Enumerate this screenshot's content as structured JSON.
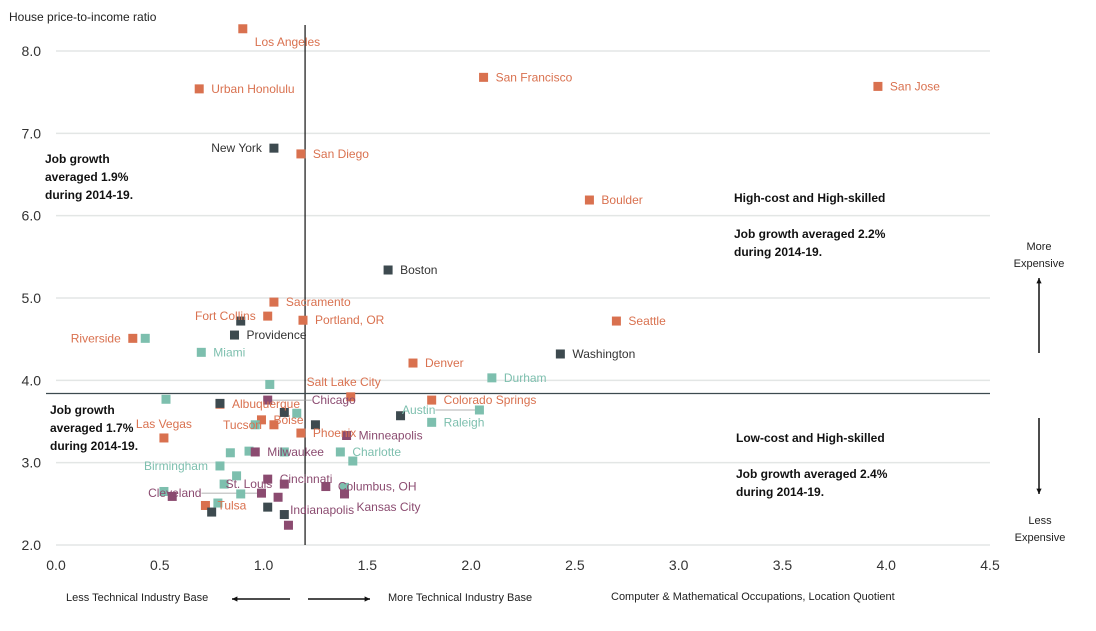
{
  "chart_data": {
    "type": "scatter",
    "ylabel": "House price-to-income ratio",
    "xlabel": "Computer & Mathematical Occupations, Location Quotient",
    "xlim": [
      0,
      4.5
    ],
    "ylim": [
      2.0,
      8.0
    ],
    "xticks": [
      "0.0",
      "0.5",
      "1.0",
      "1.5",
      "2.0",
      "2.5",
      "3.0",
      "3.5",
      "4.0",
      "4.5"
    ],
    "yticks": [
      "2.0",
      "3.0",
      "4.0",
      "5.0",
      "6.0",
      "7.0",
      "8.0"
    ],
    "grid": "horizontal",
    "reference_lines": {
      "x": 1.2,
      "y": 3.84
    },
    "colors": {
      "orange": "#d9714f",
      "dark": "#3d4a4f",
      "teal": "#7dbfae",
      "purple": "#8b4b70"
    },
    "points": [
      {
        "label": "Los Angeles",
        "x": 0.9,
        "y": 8.27,
        "color": "orange"
      },
      {
        "label": "Urban Honolulu",
        "x": 0.69,
        "y": 7.54,
        "color": "orange"
      },
      {
        "label": "San Francisco",
        "x": 2.06,
        "y": 7.68,
        "color": "orange"
      },
      {
        "label": "San Jose",
        "x": 3.96,
        "y": 7.57,
        "color": "orange"
      },
      {
        "label": "San Diego",
        "x": 1.18,
        "y": 6.75,
        "color": "orange"
      },
      {
        "label": "Boulder",
        "x": 2.57,
        "y": 6.19,
        "color": "orange"
      },
      {
        "label": "Sacramento",
        "x": 1.05,
        "y": 4.95,
        "color": "orange"
      },
      {
        "label": "Fort Collins",
        "x": 1.02,
        "y": 4.78,
        "color": "orange"
      },
      {
        "label": "Portland, OR",
        "x": 1.19,
        "y": 4.73,
        "color": "orange"
      },
      {
        "label": "Seattle",
        "x": 2.7,
        "y": 4.72,
        "color": "orange"
      },
      {
        "label": "Riverside",
        "x": 0.37,
        "y": 4.51,
        "color": "orange",
        "anchor": "left"
      },
      {
        "label": "Denver",
        "x": 1.72,
        "y": 4.21,
        "color": "orange"
      },
      {
        "label": "Salt Lake City",
        "x": 1.42,
        "y": 3.8,
        "color": "orange",
        "anchor": "above"
      },
      {
        "label": "Colorado Springs",
        "x": 1.81,
        "y": 3.76,
        "color": "orange"
      },
      {
        "label": "Albuquerque",
        "x": 0.79,
        "y": 3.71,
        "color": "orange"
      },
      {
        "label": "Boise",
        "x": 0.99,
        "y": 3.52,
        "color": "orange"
      },
      {
        "label": "Tucson",
        "x": 1.05,
        "y": 3.46,
        "color": "orange"
      },
      {
        "label": "Phoenix",
        "x": 1.18,
        "y": 3.36,
        "color": "orange"
      },
      {
        "label": "Las Vegas",
        "x": 0.52,
        "y": 3.3,
        "color": "orange"
      },
      {
        "label": "Tulsa",
        "x": 0.72,
        "y": 2.48,
        "color": "orange"
      },
      {
        "label": "New York",
        "x": 1.05,
        "y": 6.82,
        "color": "dark",
        "anchor": "left"
      },
      {
        "label": "Boston",
        "x": 1.6,
        "y": 5.34,
        "color": "dark"
      },
      {
        "label": "Providence",
        "x": 0.86,
        "y": 4.55,
        "color": "dark"
      },
      {
        "label": "",
        "x": 0.89,
        "y": 4.72,
        "color": "dark"
      },
      {
        "label": "Washington",
        "x": 2.43,
        "y": 4.32,
        "color": "dark"
      },
      {
        "label": "",
        "x": 0.79,
        "y": 3.72,
        "color": "dark"
      },
      {
        "label": "",
        "x": 1.1,
        "y": 3.61,
        "color": "dark"
      },
      {
        "label": "",
        "x": 1.25,
        "y": 3.46,
        "color": "dark"
      },
      {
        "label": "",
        "x": 1.66,
        "y": 3.57,
        "color": "dark"
      },
      {
        "label": "",
        "x": 1.02,
        "y": 2.46,
        "color": "dark"
      },
      {
        "label": "",
        "x": 1.1,
        "y": 2.37,
        "color": "dark"
      },
      {
        "label": "",
        "x": 0.75,
        "y": 2.4,
        "color": "dark"
      },
      {
        "label": "Miami",
        "x": 0.7,
        "y": 4.34,
        "color": "teal"
      },
      {
        "label": "",
        "x": 0.43,
        "y": 4.51,
        "color": "teal"
      },
      {
        "label": "",
        "x": 1.03,
        "y": 3.95,
        "color": "teal"
      },
      {
        "label": "Durham",
        "x": 2.1,
        "y": 4.03,
        "color": "teal"
      },
      {
        "label": "",
        "x": 0.53,
        "y": 3.77,
        "color": "teal"
      },
      {
        "label": "Austin",
        "x": 2.04,
        "y": 3.64,
        "color": "teal"
      },
      {
        "label": "Raleigh",
        "x": 1.81,
        "y": 3.49,
        "color": "teal"
      },
      {
        "label": "",
        "x": 1.16,
        "y": 3.6,
        "color": "teal"
      },
      {
        "label": "",
        "x": 0.96,
        "y": 3.46,
        "color": "teal"
      },
      {
        "label": "",
        "x": 0.84,
        "y": 3.12,
        "color": "teal"
      },
      {
        "label": "",
        "x": 0.93,
        "y": 3.14,
        "color": "teal"
      },
      {
        "label": "",
        "x": 1.1,
        "y": 3.13,
        "color": "teal"
      },
      {
        "label": "Charlotte",
        "x": 1.37,
        "y": 3.13,
        "color": "teal"
      },
      {
        "label": "",
        "x": 1.43,
        "y": 3.02,
        "color": "teal"
      },
      {
        "label": "Birmingham",
        "x": 0.79,
        "y": 2.96,
        "color": "teal",
        "anchor": "left"
      },
      {
        "label": "",
        "x": 0.87,
        "y": 2.84,
        "color": "teal"
      },
      {
        "label": "",
        "x": 0.81,
        "y": 2.74,
        "color": "teal"
      },
      {
        "label": "",
        "x": 0.52,
        "y": 2.65,
        "color": "teal"
      },
      {
        "label": "",
        "x": 0.89,
        "y": 2.62,
        "color": "teal"
      },
      {
        "label": "",
        "x": 0.78,
        "y": 2.51,
        "color": "teal"
      },
      {
        "label": "",
        "x": 1.39,
        "y": 2.7,
        "color": "teal"
      },
      {
        "label": "Chicago",
        "x": 1.02,
        "y": 3.76,
        "color": "purple"
      },
      {
        "label": "Milwaukee",
        "x": 0.96,
        "y": 3.13,
        "color": "purple"
      },
      {
        "label": "Minneapolis",
        "x": 1.4,
        "y": 3.33,
        "color": "purple"
      },
      {
        "label": "Cincinnati",
        "x": 1.02,
        "y": 2.8,
        "color": "purple"
      },
      {
        "label": "St. Louis",
        "x": 1.1,
        "y": 2.74,
        "color": "purple"
      },
      {
        "label": "Columbus, OH",
        "x": 1.3,
        "y": 2.71,
        "color": "purple"
      },
      {
        "label": "Cleveland",
        "x": 0.99,
        "y": 2.63,
        "color": "purple"
      },
      {
        "label": "Indianapolis",
        "x": 1.07,
        "y": 2.58,
        "color": "purple"
      },
      {
        "label": "Kansas City",
        "x": 1.39,
        "y": 2.62,
        "color": "purple"
      },
      {
        "label": "",
        "x": 0.56,
        "y": 2.59,
        "color": "purple"
      },
      {
        "label": "",
        "x": 1.12,
        "y": 2.24,
        "color": "purple"
      }
    ],
    "annotations": {
      "top_left": [
        "Job growth",
        "averaged 1.9%",
        "during 2014-19."
      ],
      "bottom_left": [
        "Job growth",
        "averaged 1.7%",
        "during 2014-19."
      ],
      "top_right_title": "High-cost and High-skilled",
      "top_right": [
        "Job growth averaged 2.2%",
        "during 2014-19."
      ],
      "bottom_right_title": "Low-cost and High-skilled",
      "bottom_right": [
        "Job growth averaged 2.4%",
        "during 2014-19."
      ],
      "more_expensive": [
        "More",
        "Expensive"
      ],
      "less_expensive": [
        "Less",
        "Expensive"
      ],
      "less_technical": "Less Technical Industry Base",
      "more_technical": "More Technical Industry Base"
    }
  }
}
